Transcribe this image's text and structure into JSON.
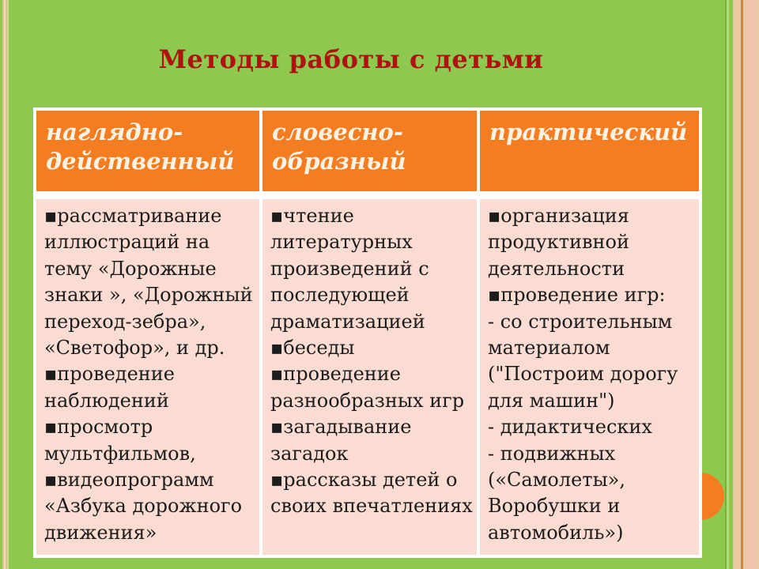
{
  "slide": {
    "title": "Методы работы с детьми",
    "colors": {
      "background_green": "#8DC94E",
      "header_orange": "#F47D21",
      "body_pink": "#FBDCD2",
      "border_white": "#FFFFFF",
      "title_red": "#AE1312",
      "header_text": "#FCF3E5",
      "body_text": "#1C1C1C",
      "accent_circle_orange": "#F47D21",
      "frame_tan": "#EAC8A2",
      "frame_brown_line": "#C9854D",
      "frame_pink_stripe": "#F3C3B2"
    },
    "table": {
      "columns": [
        {
          "header": "наглядно-\nдейственный",
          "items": "▪рассматривание\nиллюстраций на\nтему «Дорожные\nзнаки », «Дорожный\nпереход-зебра»,\n«Светофор», и др.\n▪проведение\nнаблюдений\n▪просмотр\nмультфильмов,\n▪видеопрограмм\n«Азбука дорожного\nдвижения»"
        },
        {
          "header": "словесно-\nобразный",
          "items": "▪чтение\nлитературных\nпроизведений с\nпоследующей\nдраматизацией\n▪беседы\n▪проведение\nразнообразных игр\n▪загадывание\nзагадок\n▪рассказы детей о\nсвоих впечатлениях"
        },
        {
          "header": "практический",
          "items": "▪организация\nпродуктивной\nдеятельности\n▪проведение игр:\n- со строительным\nматериалом\n(\"Построим дорогу\nдля машин\")\n- дидактических\n- подвижных\n(«Самолеты»,\nВоробушки и\nавтомобиль»)"
        }
      ]
    }
  }
}
